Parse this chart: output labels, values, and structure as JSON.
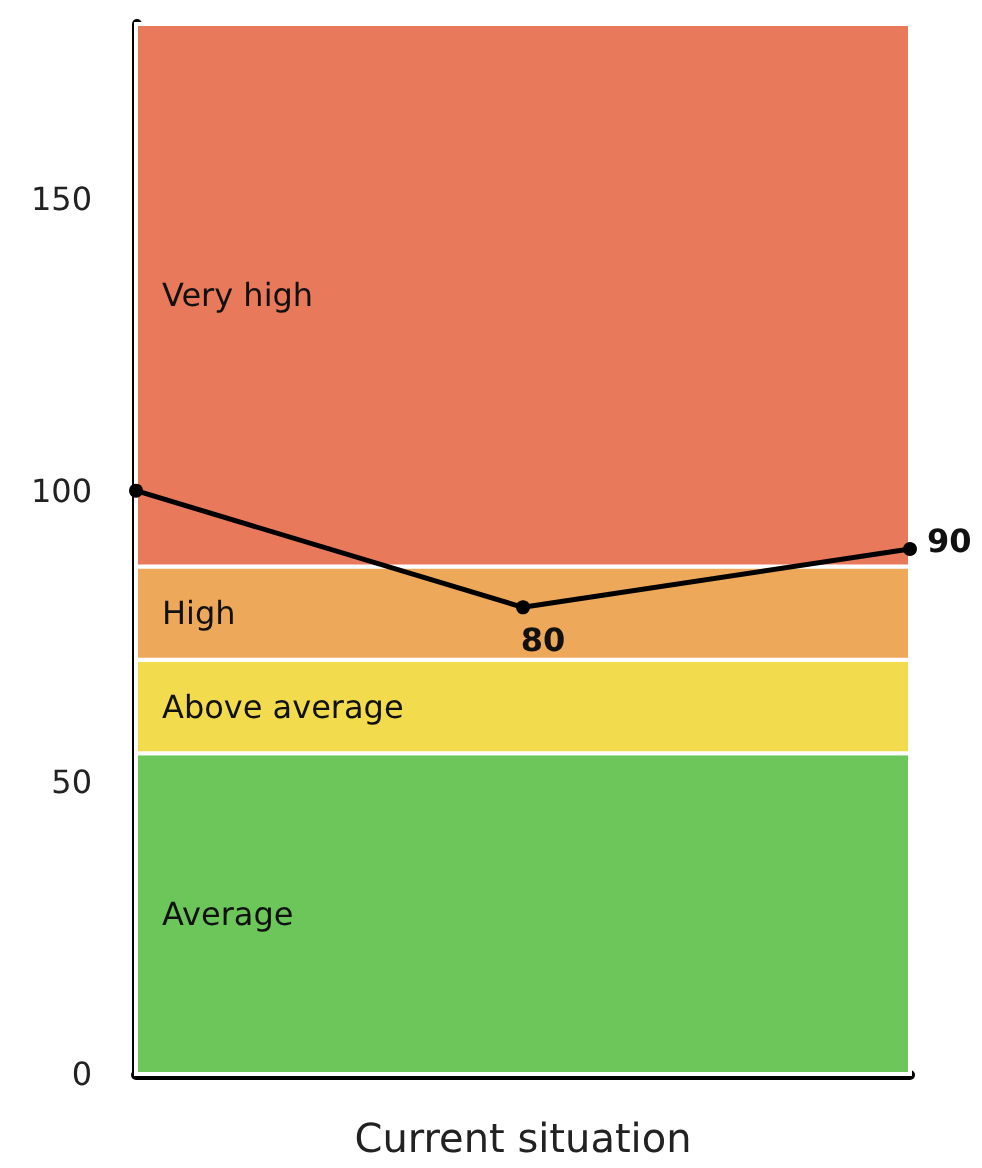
{
  "chart_data": {
    "type": "line",
    "xlabel": "Current situation",
    "categories": [
      null,
      null,
      null
    ],
    "series": [
      {
        "color": "#000000",
        "values": [
          100,
          80,
          90
        ],
        "value_labels": [
          null,
          "80",
          "90"
        ]
      }
    ],
    "ylim": [
      0,
      180
    ],
    "yticks": [
      0,
      50,
      100,
      150
    ],
    "tick_labels": "y",
    "marker": "circle",
    "line_style": "solid",
    "bands": [
      {
        "axis": "y",
        "from": 0,
        "to": 55,
        "label": "Average",
        "color": "#6cc65a"
      },
      {
        "axis": "y",
        "from": 55,
        "to": 71,
        "label": "Above average",
        "color": "#f2dc4e"
      },
      {
        "axis": "y",
        "from": 71,
        "to": 87,
        "label": "High",
        "color": "#eea85a"
      },
      {
        "axis": "y",
        "from": 87,
        "to": 180,
        "label": "Very high",
        "color": "#e8795a"
      }
    ]
  }
}
